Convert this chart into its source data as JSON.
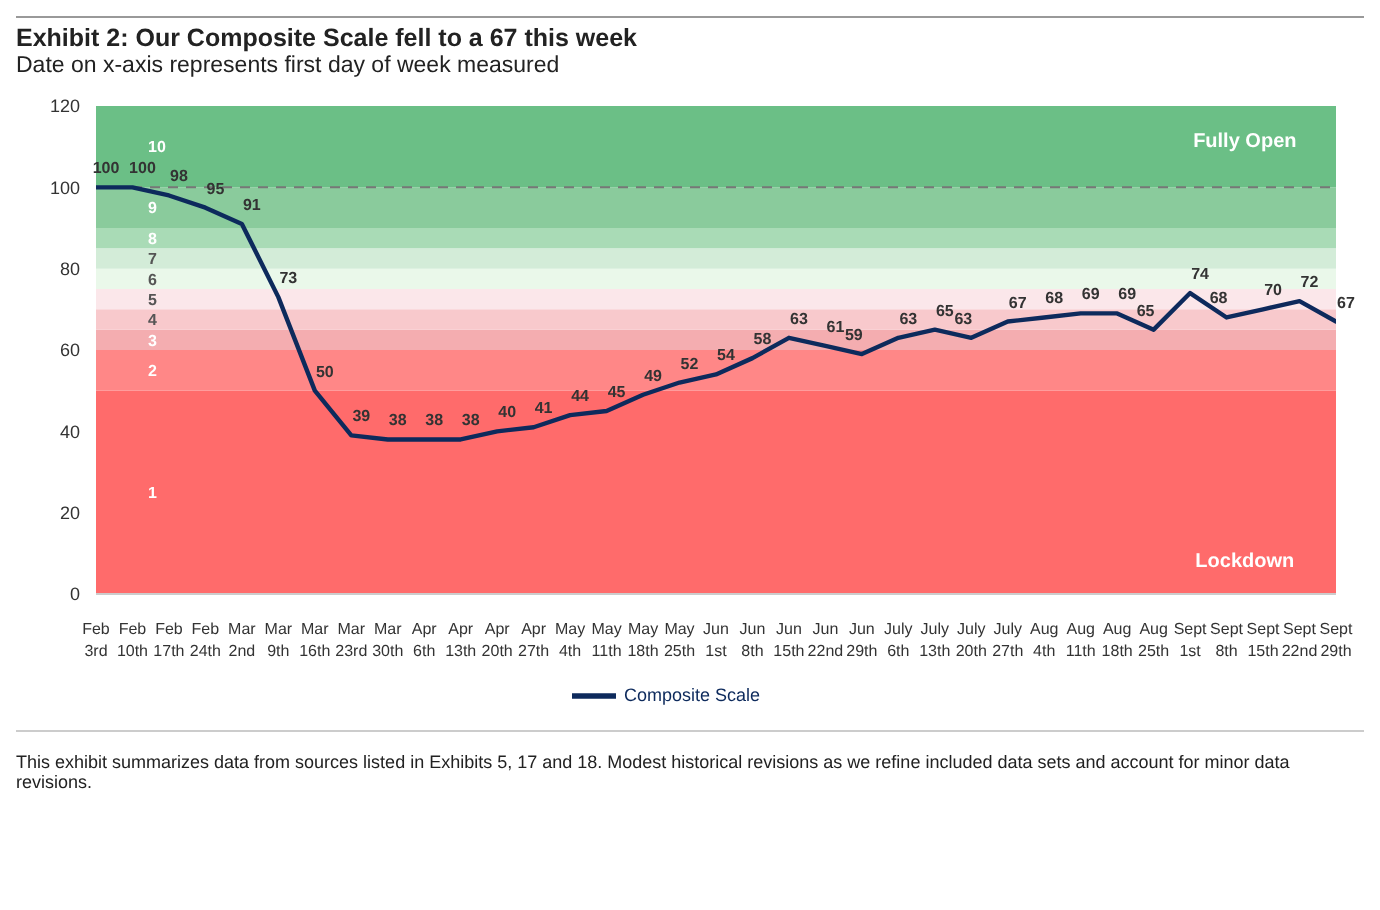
{
  "chart_data": {
    "type": "line",
    "title": "Exhibit 2: Our Composite Scale fell to a 67 this week",
    "subtitle": "Date on x-axis represents first day of week measured",
    "categories": [
      "Feb 3rd",
      "Feb 10th",
      "Feb 17th",
      "Feb 24th",
      "Mar 2nd",
      "Mar 9th",
      "Mar 16th",
      "Mar 23rd",
      "Mar 30th",
      "Apr 6th",
      "Apr 13th",
      "Apr 20th",
      "Apr 27th",
      "May 4th",
      "May 11th",
      "May 18th",
      "May 25th",
      "Jun 1st",
      "Jun 8th",
      "Jun 15th",
      "Jun 22nd",
      "Jun 29th",
      "July 6th",
      "July 13th",
      "July 20th",
      "July 27th",
      "Aug 4th",
      "Aug 11th",
      "Aug 18th",
      "Aug 25th",
      "Sept 1st",
      "Sept 8th",
      "Sept 15th",
      "Sept 22nd",
      "Sept 29th"
    ],
    "series": [
      {
        "name": "Composite Scale",
        "color": "#0d2a5c",
        "values": [
          100,
          100,
          98,
          95,
          91,
          73,
          50,
          39,
          38,
          38,
          38,
          40,
          41,
          44,
          45,
          49,
          52,
          54,
          58,
          63,
          61,
          59,
          63,
          65,
          63,
          67,
          68,
          69,
          69,
          65,
          74,
          68,
          70,
          72,
          67
        ]
      }
    ],
    "ylim": [
      0,
      120
    ],
    "yticks": [
      0,
      20,
      40,
      60,
      80,
      100,
      120
    ],
    "grid": false,
    "legend": "bottom",
    "marker": "none",
    "line_style": "solid",
    "data_labels": true,
    "bands": [
      {
        "axis": "y",
        "from": 0,
        "to": 50,
        "label": "1",
        "color": "#ff6b6b"
      },
      {
        "axis": "y",
        "from": 50,
        "to": 60,
        "label": "2",
        "color": "#ff8787"
      },
      {
        "axis": "y",
        "from": 60,
        "to": 65,
        "label": "3",
        "color": "#f4adb0"
      },
      {
        "axis": "y",
        "from": 65,
        "to": 70,
        "label": "4",
        "color": "#f8c9cc"
      },
      {
        "axis": "y",
        "from": 70,
        "to": 75,
        "label": "5",
        "color": "#fbe7ea"
      },
      {
        "axis": "y",
        "from": 75,
        "to": 80,
        "label": "6",
        "color": "#eaf8ea"
      },
      {
        "axis": "y",
        "from": 80,
        "to": 85,
        "label": "7",
        "color": "#d3ecd8"
      },
      {
        "axis": "y",
        "from": 85,
        "to": 90,
        "label": "8",
        "color": "#a9dbb6"
      },
      {
        "axis": "y",
        "from": 90,
        "to": 100,
        "label": "9",
        "color": "#8acb9c"
      },
      {
        "axis": "y",
        "from": 100,
        "to": 120,
        "label": "10",
        "color": "#6bbf86"
      }
    ],
    "ref_lines": [
      {
        "axis": "y",
        "value": 100,
        "color": "#777777",
        "line_style": "dashed"
      }
    ],
    "annotations": [
      "Fully Open",
      "Lockdown",
      "This exhibit summarizes data from sources listed in Exhibits 5, 17 and 18. Modest historical revisions as we refine included data sets and account for minor data revisions."
    ]
  }
}
